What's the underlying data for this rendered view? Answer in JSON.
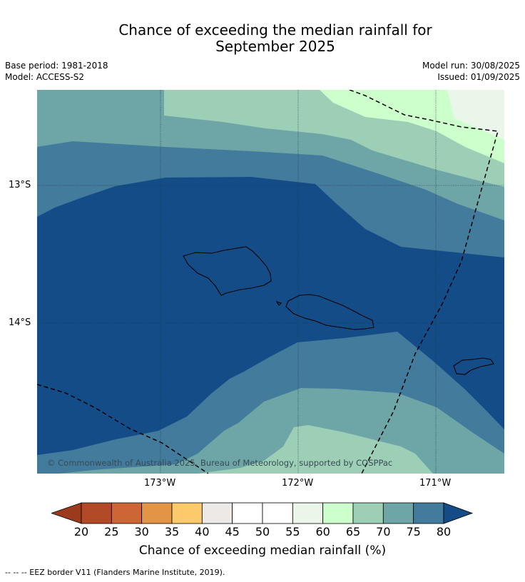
{
  "title_line1": "Chance of exceeding the median rainfall for",
  "title_line2": "September 2025",
  "meta": {
    "base_period": "Base period: 1981-2018",
    "model": "Model: ACCESS-S2",
    "model_run": "Model run: 30/08/2025",
    "issued": "Issued: 01/09/2025"
  },
  "map": {
    "lat_labels": [
      "13°S",
      "14°S"
    ],
    "lon_labels": [
      "173°W",
      "172°W",
      "171°W"
    ],
    "copyright": "© Commonwealth of Australia 2025, Bureau of Meteorology, supported by COSPPac"
  },
  "colorbar": {
    "ticks": [
      "20",
      "25",
      "30",
      "35",
      "40",
      "45",
      "50",
      "55",
      "60",
      "65",
      "70",
      "75",
      "80"
    ],
    "colors": [
      "#9c3a1e",
      "#b24a28",
      "#cd6634",
      "#e29546",
      "#fcca6a",
      "#ede9e6",
      "#ffffff",
      "#ffffff",
      "#eaf6ea",
      "#ccffcc",
      "#9ccfb6",
      "#6ea5a7",
      "#427b9b",
      "#134c87"
    ],
    "title": "Chance of exceeding median rainfall (%)"
  },
  "footer": "--  --  -- EEZ border V11 (Flanders Marine Institute, 2019)."
}
